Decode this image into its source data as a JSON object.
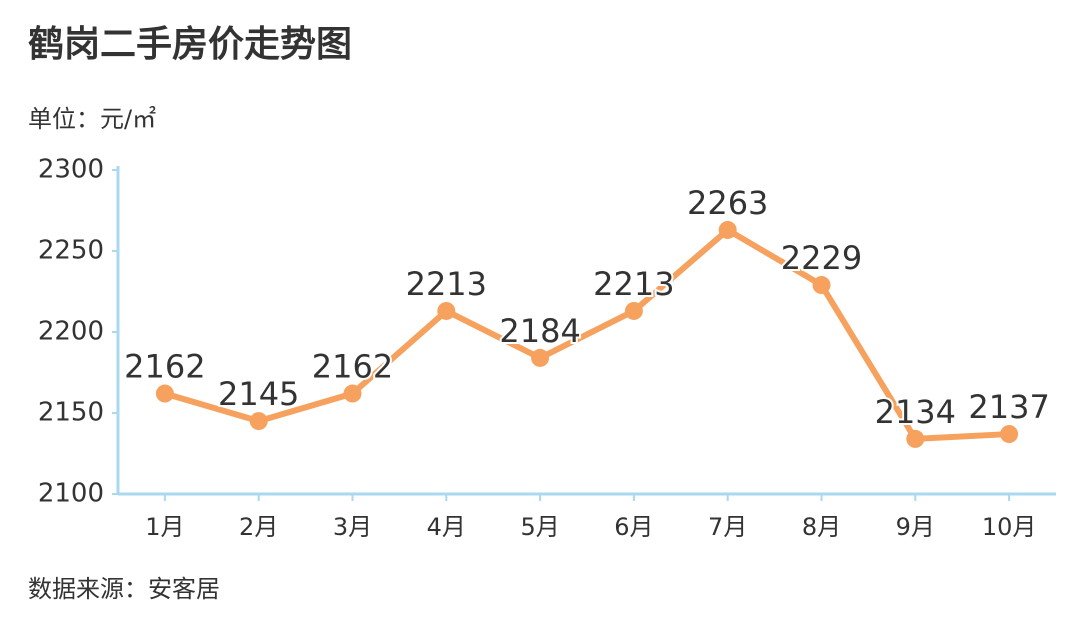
{
  "chart_data": {
    "type": "line",
    "title": "鹤岗二手房价走势图",
    "subtitle": "单位：元/㎡",
    "source": "数据来源：安客居",
    "categories": [
      "1月",
      "2月",
      "3月",
      "4月",
      "5月",
      "6月",
      "7月",
      "8月",
      "9月",
      "10月"
    ],
    "values": [
      2162,
      2145,
      2162,
      2213,
      2184,
      2213,
      2263,
      2229,
      2134,
      2137
    ],
    "color": "#f6a25e",
    "axis_color": "#a9d9ef",
    "ylim": [
      2100,
      2300
    ],
    "yticks": [
      2100,
      2150,
      2200,
      2250,
      2300
    ],
    "grid": false
  }
}
